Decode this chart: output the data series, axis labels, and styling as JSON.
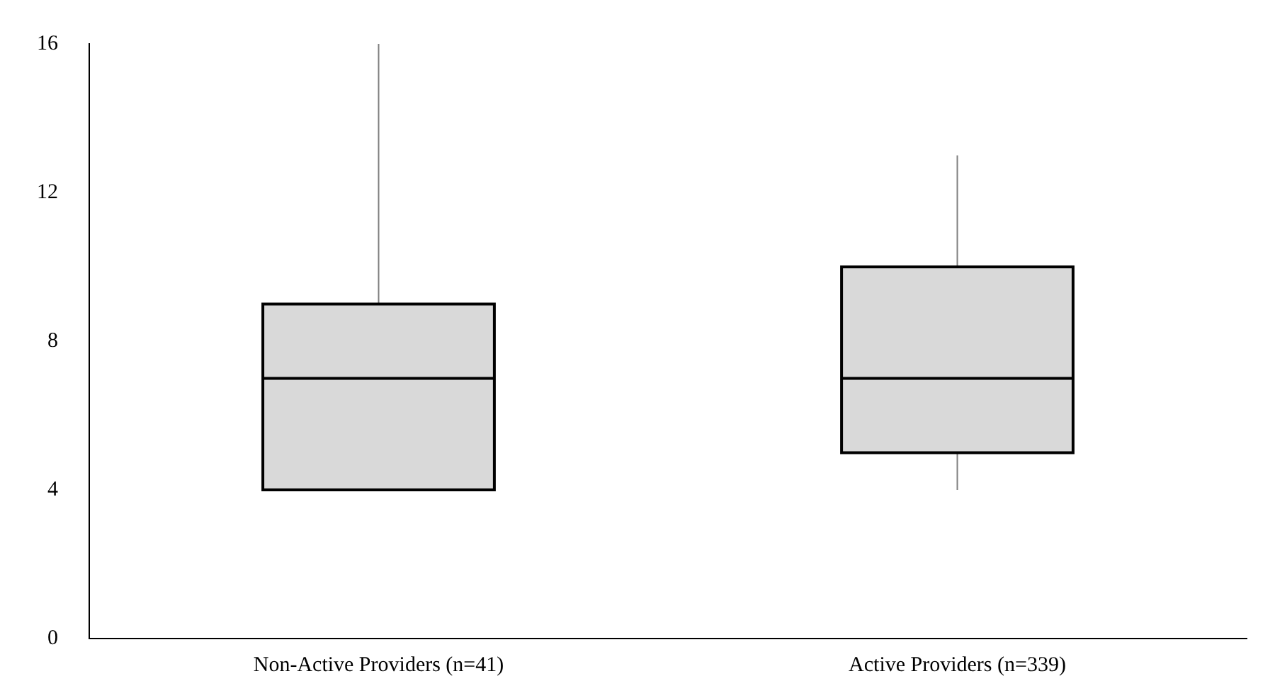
{
  "chart_data": {
    "type": "box",
    "categories": [
      "Non-Active Providers (n=41)",
      "Active Providers (n=339)"
    ],
    "boxes": [
      {
        "low": 4,
        "q1": 4,
        "median": 7,
        "q3": 9,
        "high": 16
      },
      {
        "low": 4,
        "q1": 5,
        "median": 7,
        "q3": 10,
        "high": 13
      }
    ],
    "color": "#d9d9d9",
    "ylim": [
      0,
      16
    ],
    "yticks": [
      0,
      4,
      8,
      12,
      16
    ]
  }
}
